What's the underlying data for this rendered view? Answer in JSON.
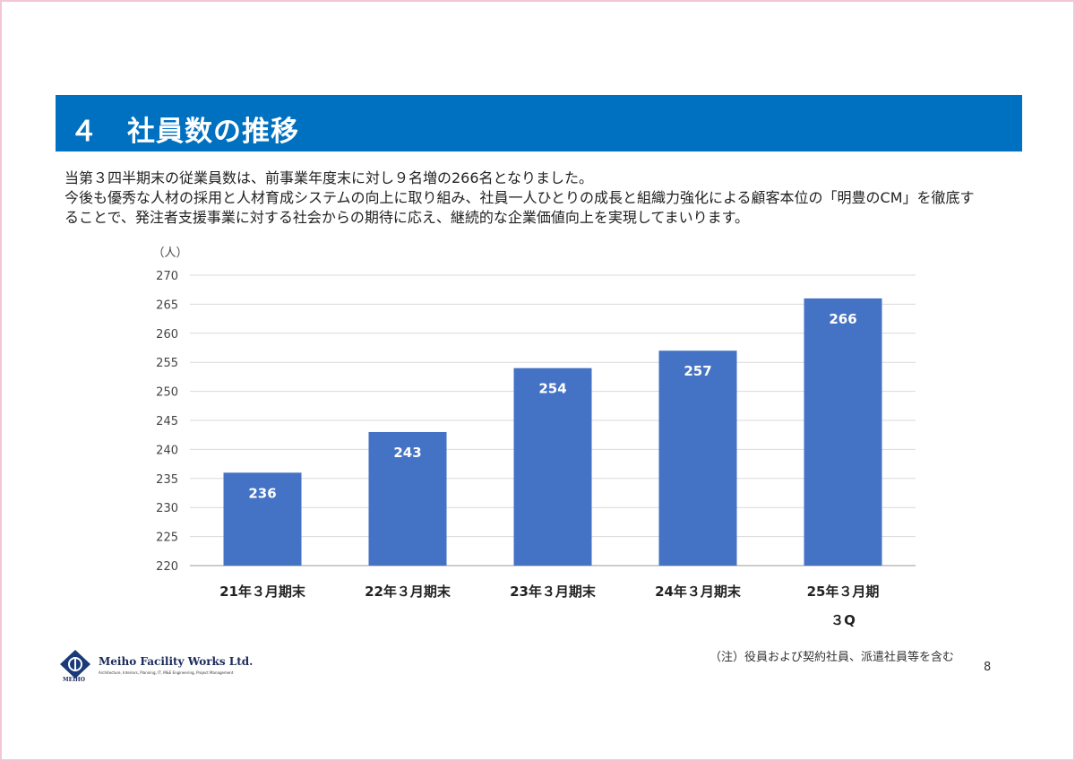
{
  "header": {
    "title": "４　社員数の推移",
    "color": "#0070c0"
  },
  "intro": {
    "line1": "当第３四半期末の従業員数は、前事業年度末に対し９名増の266名となりました。",
    "line2": "今後も優秀な人材の採用と人材育成システムの向上に取り組み、社員一人ひとりの成長と組織力強化による顧客本位の「明豊のCM」を徹底す",
    "line3": "ることで、発注者支援事業に対する社会からの期待に応え、継続的な企業価値向上を実現してまいります。"
  },
  "chart_data": {
    "type": "bar",
    "ylabel": "（人）",
    "categories": [
      "21年３月期末",
      "22年３月期末",
      "23年３月期末",
      "24年３月期末",
      "25年３月期\n３Q"
    ],
    "values": [
      236,
      243,
      254,
      257,
      266
    ],
    "ylim": [
      220,
      270
    ],
    "yticks": [
      220,
      225,
      230,
      235,
      240,
      245,
      250,
      255,
      260,
      265,
      270
    ],
    "grid": true,
    "data_labels": true,
    "bar_color": "#4472c4"
  },
  "footer": {
    "note": "（注）役員および契約社員、派遣社員等を含む",
    "page_number": "8",
    "company_name": "Meiho Facility Works Ltd.",
    "company_tagline": "Architecture, Interiors, Planning, IT, M&E Engineering, Project Management",
    "company_short": "MEIHO"
  }
}
